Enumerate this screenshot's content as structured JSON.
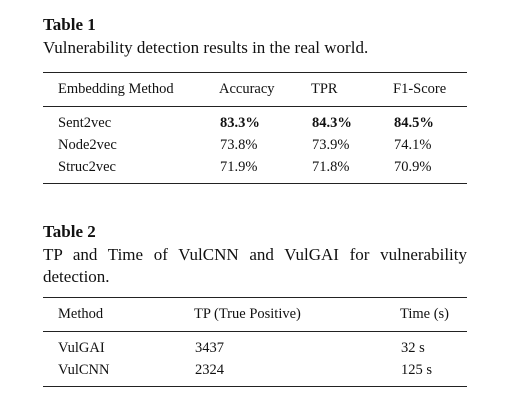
{
  "table1": {
    "label": "Table 1",
    "caption": "Vulnerability detection results in the real world.",
    "headers": [
      "Embedding Method",
      "Accuracy",
      "TPR",
      "F1-Score"
    ],
    "rows": [
      [
        "Sent2vec",
        "83.3%",
        "84.3%",
        "84.5%"
      ],
      [
        "Node2vec",
        "73.8%",
        "73.9%",
        "74.1%"
      ],
      [
        "Struc2vec",
        "71.9%",
        "71.8%",
        "70.9%"
      ]
    ]
  },
  "table2": {
    "label": "Table 2",
    "caption": "TP and Time of VulCNN and VulGAI for vulnerability detection.",
    "headers": [
      "Method",
      "TP (True Positive)",
      "Time (s)"
    ],
    "rows": [
      [
        "VulGAI",
        "3437",
        "32 s"
      ],
      [
        "VulCNN",
        "2324",
        "125 s"
      ]
    ]
  }
}
